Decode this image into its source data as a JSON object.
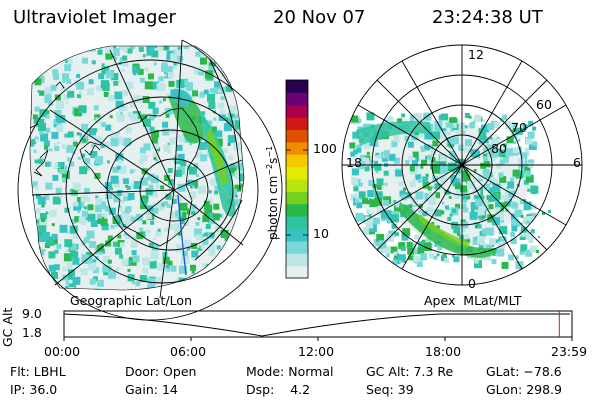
{
  "header": {
    "instrument": "Ultraviolet Imager",
    "date": "20 Nov 07",
    "time": "23:24:38 UT"
  },
  "colors": {
    "background": "#ffffff",
    "grid": "#000000",
    "marker": "#cc2200",
    "orbit_line": "#1d4fd0",
    "scale": [
      "#e6f0f0",
      "#bfe6e6",
      "#79d9d9",
      "#38c3c3",
      "#2fc4a0",
      "#2ab84a",
      "#77cf1f",
      "#b8e60f",
      "#e3ec00",
      "#f5c800",
      "#f08c00",
      "#e05000",
      "#d01818",
      "#a8004a",
      "#6c0076",
      "#2a0050"
    ]
  },
  "colorbar": {
    "unit_label": "photon cm",
    "unit_exp1": "−2",
    "unit_mid": "s",
    "unit_exp2": "−1",
    "ticks": [
      "100",
      "10"
    ]
  },
  "left_panel": {
    "label": "Geographic Lat/Lon"
  },
  "right_panel": {
    "label": "Apex  MLat/MLT",
    "mlt_labels": [
      "12",
      "18",
      "6",
      "0"
    ],
    "mlat_labels": [
      "60",
      "70",
      "80"
    ]
  },
  "altitude_plot": {
    "axis_title": "GC Alt",
    "y_ticks": [
      "9.0",
      "1.8"
    ],
    "time_ticks": [
      "00:00",
      "06:00",
      "12:00",
      "18:00",
      "23:59"
    ],
    "current_time_fraction": 0.975
  },
  "info": {
    "row1": [
      {
        "label": "Flt:",
        "value": "LBHL"
      },
      {
        "label": "Door:",
        "value": "Open"
      },
      {
        "label": "Mode:",
        "value": "Normal"
      },
      {
        "label": "GC Alt:",
        "value": "7.3 Re"
      },
      {
        "label": "GLat:",
        "value": "−78.6"
      }
    ],
    "row2": [
      {
        "label": "IP:",
        "value": "36.0"
      },
      {
        "label": "Gain:",
        "value": "14"
      },
      {
        "label": "Dsp:",
        "value": "4.2"
      },
      {
        "label": "Seq:",
        "value": "39"
      },
      {
        "label": "GLon:",
        "value": "298.9"
      }
    ]
  }
}
